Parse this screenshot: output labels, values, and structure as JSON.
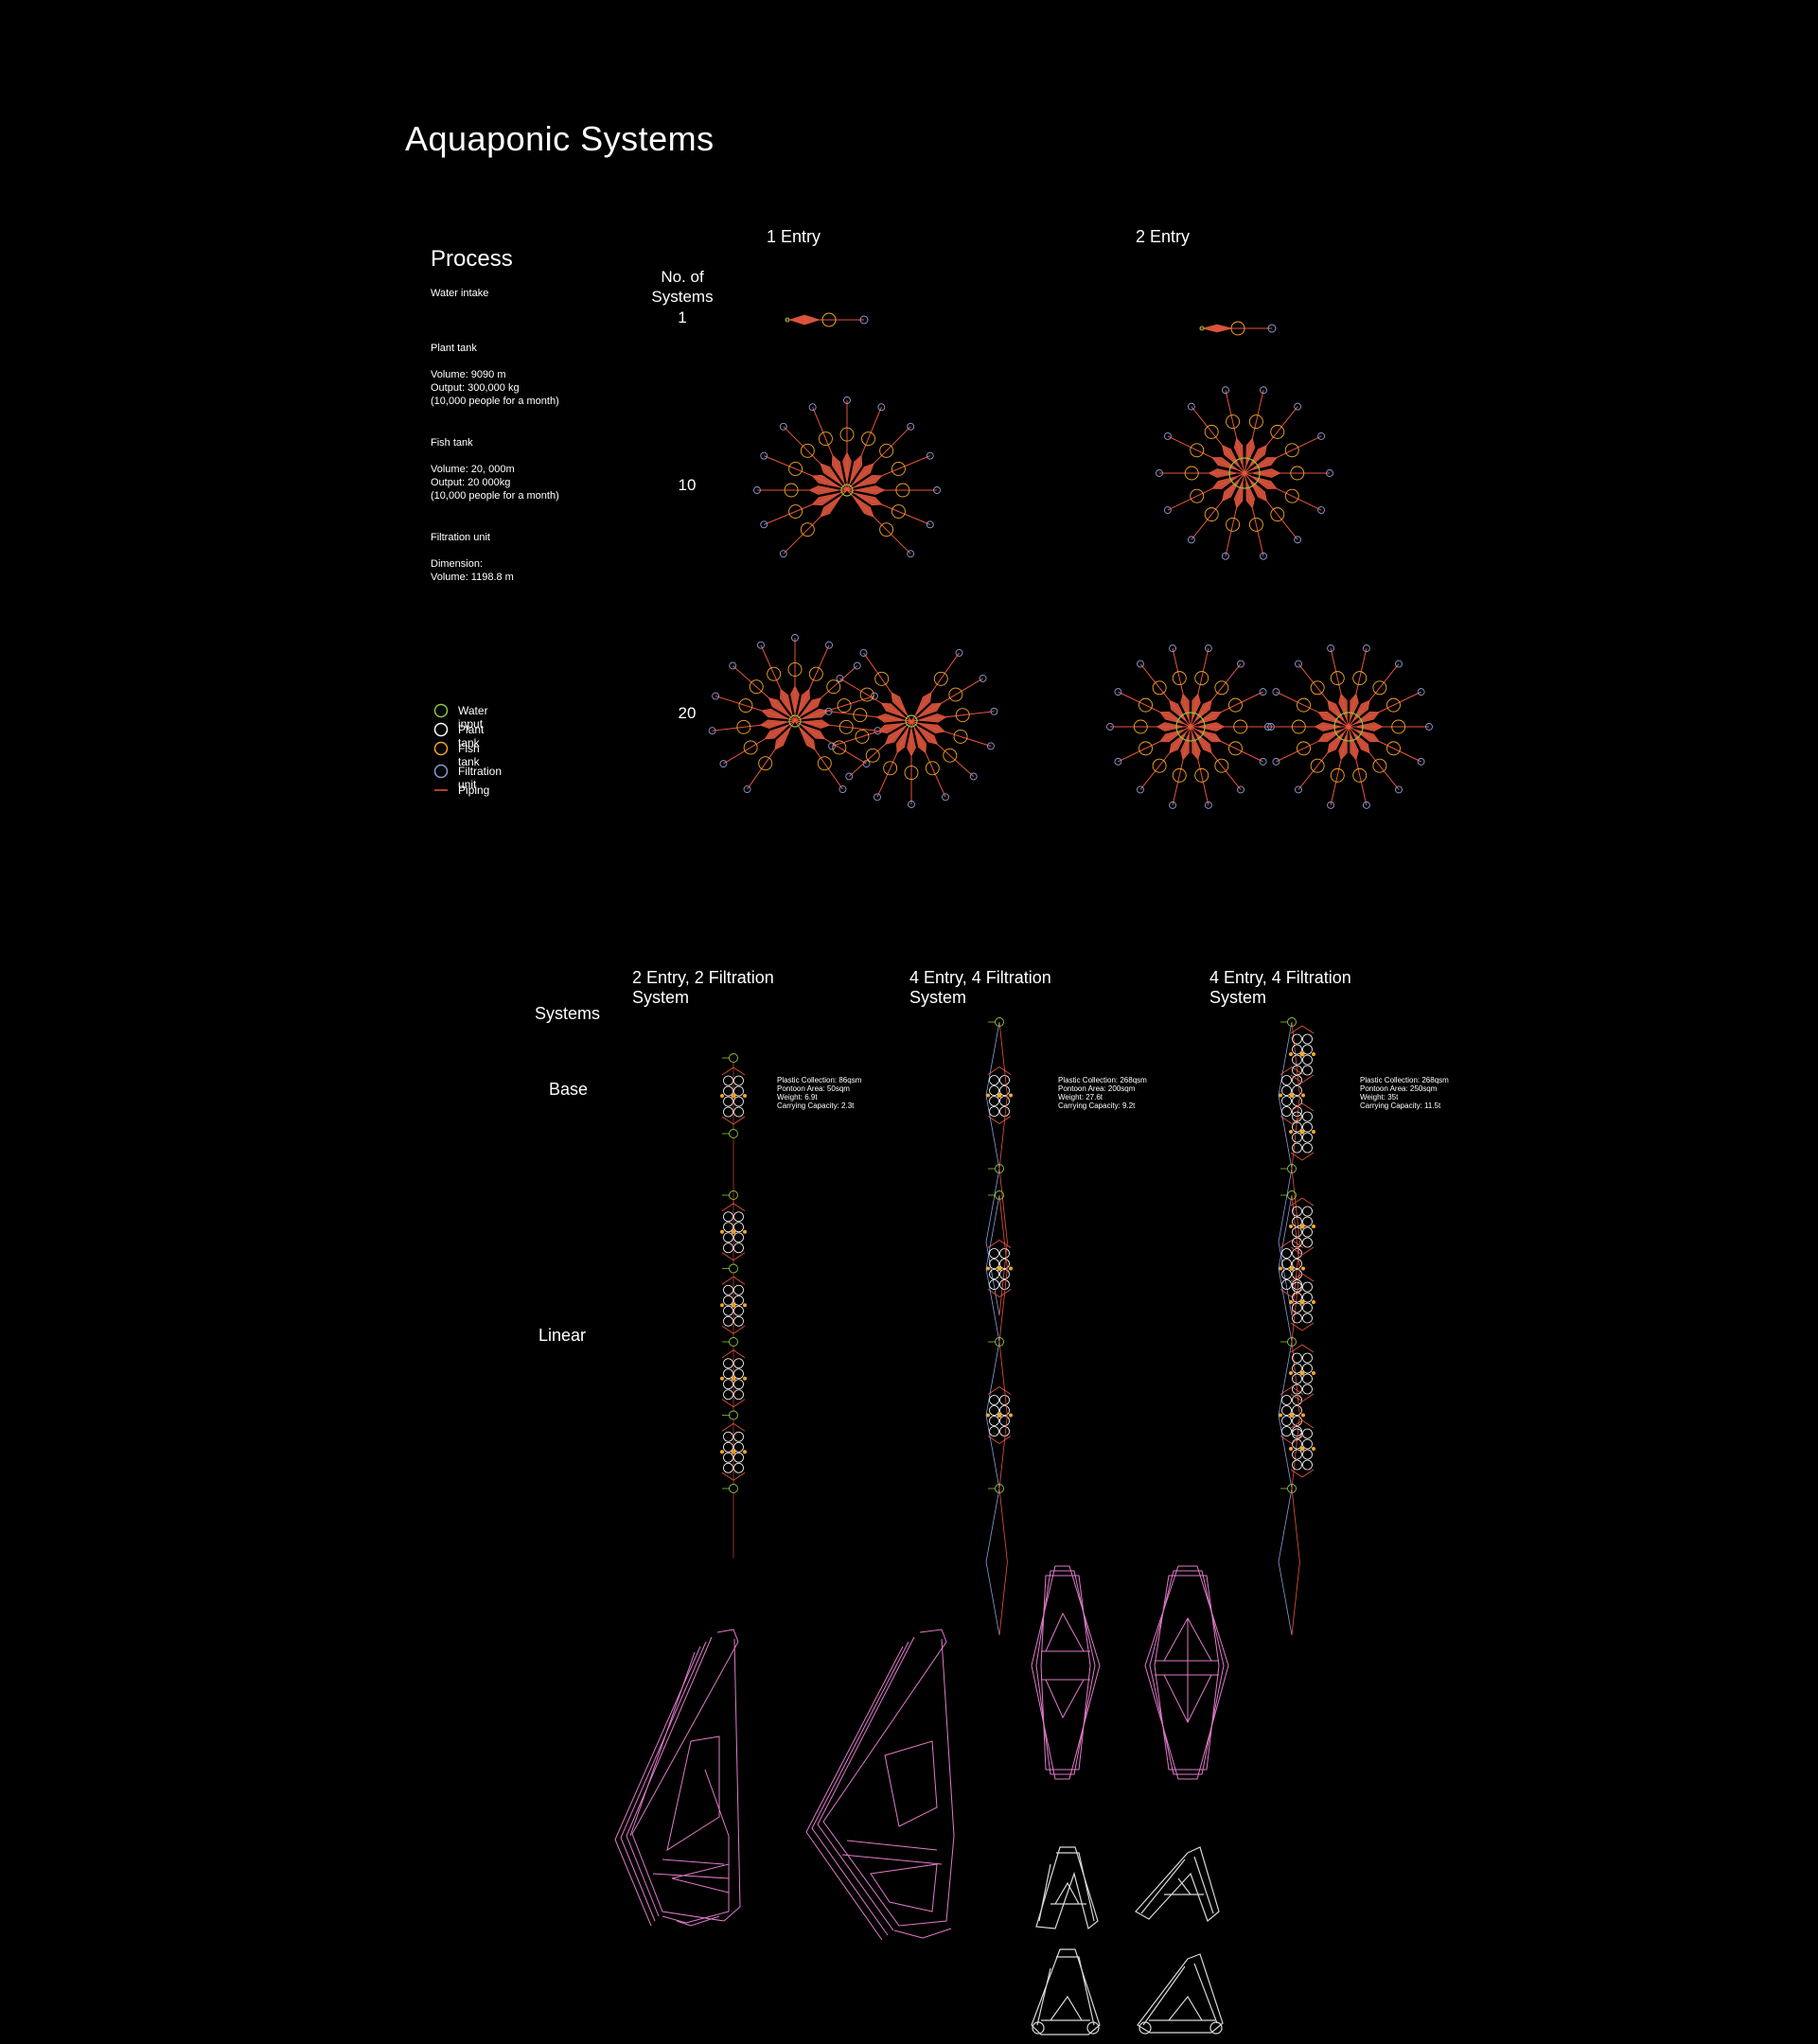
{
  "title": "Aquaponic Systems",
  "process": {
    "heading": "Process",
    "water_intake": "Water intake",
    "plant_tank": "Plant tank\n\nVolume: 9090 m\nOutput: 300,000 kg\n(10,000 people for a month)",
    "fish_tank": "Fish tank\n\nVolume: 20, 000m\nOutput: 20 000kg\n(10,000 people for a month)",
    "filtration_unit": "Filtration unit\n\nDimension:\nVolume: 1198.8 m"
  },
  "grid": {
    "col1": "1 Entry",
    "col2": "2 Entry",
    "rows_heading": "No. of\nSystems",
    "rows": [
      "1",
      "10",
      "20"
    ]
  },
  "legend": [
    {
      "label": "Water input",
      "color": "#8cc63f",
      "icon": "circle"
    },
    {
      "label": "Plant tank",
      "color": "#ffffff",
      "icon": "circle"
    },
    {
      "label": "Fish tank",
      "color": "#f5a623",
      "icon": "circle"
    },
    {
      "label": "Filtration unit",
      "color": "#8b9bd6",
      "icon": "circle"
    },
    {
      "label": "Piping",
      "color": "#e8553a",
      "icon": "line"
    }
  ],
  "systems": {
    "heading": "Systems",
    "cols": [
      "2 Entry, 2 Filtration\nSystem",
      "4 Entry, 4 Filtration\nSystem",
      "4 Entry, 4 Filtration\nSystem"
    ],
    "rows": [
      "Base",
      "Linear"
    ],
    "stats": [
      "Plastic Collection: 86qsm\nPontoon Area: 50sqm\nWeight: 6.9t\nCarrying Capacity: 2.3t",
      "Plastic Collection: 268qsm\nPontoon Area: 200sqm\nWeight: 27.6t\nCarrying Capacity: 9.2t",
      "Plastic Collection: 268qsm\nPontoon Area: 250sqm\nWeight: 35t\nCarrying Capacity: 11.5t"
    ]
  },
  "colors": {
    "background": "#000000",
    "piping": "#e8553a",
    "fill": "#d9543d",
    "water": "#8cc63f",
    "plant": "#ffffff",
    "fish": "#f5a623",
    "filtration": "#8b9bd6",
    "structure_pink": "#e07bc8",
    "structure_white": "#d8d8d8"
  }
}
